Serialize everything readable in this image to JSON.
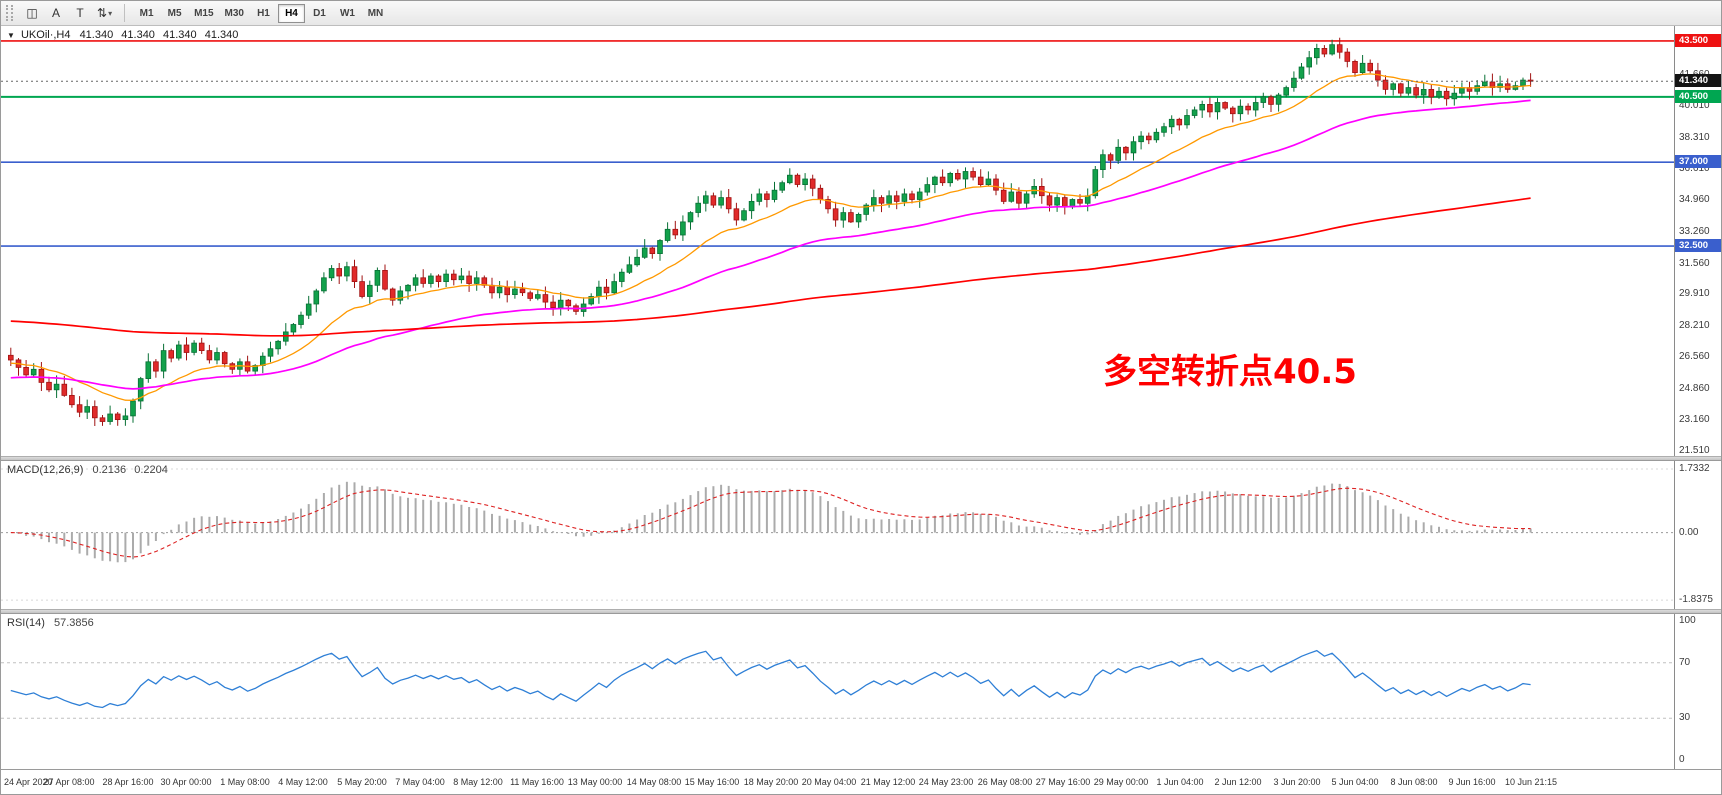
{
  "toolbar": {
    "buttons": [
      {
        "id": "chart-style-button",
        "glyph": "◫"
      },
      {
        "id": "text-tool-button",
        "glyph": "A"
      },
      {
        "id": "type-tool-button",
        "glyph": "T"
      },
      {
        "id": "scale-tool-button",
        "glyph": "⇅"
      }
    ],
    "dropdown_caret": "▾",
    "timeframes": [
      "M1",
      "M5",
      "M15",
      "M30",
      "H1",
      "H4",
      "D1",
      "W1",
      "MN"
    ],
    "active_timeframe": "H4"
  },
  "chart_header": {
    "collapse_icon": "▼",
    "symbol": "UKOil·,H4",
    "open": "41.340",
    "high": "41.340",
    "low": "41.340",
    "close": "41.340"
  },
  "annotation": {
    "text": "多空转折点40.5",
    "color": "#FF0000"
  },
  "main_chart": {
    "price_min": 21.25,
    "price_max": 44.3,
    "ticks": [
      41.66,
      40.01,
      38.31,
      36.61,
      34.96,
      33.26,
      31.56,
      29.91,
      28.21,
      26.56,
      24.86,
      23.16,
      21.51
    ],
    "levels": [
      {
        "price": 43.5,
        "label": "43.500",
        "color": "#EE1111"
      },
      {
        "price": 40.5,
        "label": "40.500",
        "color": "#00A651"
      },
      {
        "price": 37.0,
        "label": "37.000",
        "color": "#3A5FCD"
      },
      {
        "price": 32.5,
        "label": "32.500",
        "color": "#3A5FCD"
      }
    ],
    "current_price": {
      "value": 41.34,
      "label": "41.340",
      "badge_color": "#141414"
    },
    "colors": {
      "up": "#12A14B",
      "up_edge": "#077035",
      "down": "#E02A2A",
      "down_edge": "#A01212",
      "ma_fast": "#FF9900",
      "ma_mid": "#FF00FF",
      "ma_slow": "#FF0000"
    },
    "ma": [
      {
        "period": 16,
        "seed": 26.2
      },
      {
        "period": 50,
        "seed": 25.4
      },
      {
        "period": 220,
        "seed": 28.5
      }
    ]
  },
  "macd": {
    "label": "MACD(12,26,9)",
    "value_main": "0.2136",
    "value_signal": "0.2204",
    "axis": [
      {
        "v": 1.7332,
        "label": "1.7332"
      },
      {
        "v": 0,
        "label": "0.00"
      },
      {
        "v": -1.8375,
        "label": "-1.8375"
      }
    ],
    "range": [
      -2.08,
      1.95
    ],
    "params": {
      "fast": 12,
      "slow": 26,
      "signal": 9
    },
    "colors": {
      "hist": "#ABABAB",
      "signal": "#DD2222"
    }
  },
  "rsi": {
    "label": "RSI(14)",
    "value": "57.3856",
    "period": 14,
    "axis": [
      {
        "v": 100,
        "label": "100"
      },
      {
        "v": 70,
        "label": "70"
      },
      {
        "v": 30,
        "label": "30"
      },
      {
        "v": 0,
        "label": "0"
      }
    ],
    "levels": [
      70,
      30
    ],
    "color": "#2E7FD6"
  },
  "chart_data": {
    "type": "candlestick",
    "symbol": "UKOil",
    "timeframe": "H4",
    "title": "UKOil·,H4",
    "price_range": [
      21.25,
      44.3
    ],
    "closes": [
      26.4,
      26.0,
      25.6,
      25.9,
      25.2,
      24.8,
      25.1,
      24.5,
      24.0,
      23.6,
      23.9,
      23.3,
      23.1,
      23.5,
      23.2,
      23.4,
      24.2,
      25.4,
      26.3,
      25.8,
      26.9,
      26.5,
      27.2,
      26.8,
      27.3,
      26.9,
      26.4,
      26.8,
      26.2,
      25.9,
      26.3,
      25.8,
      26.1,
      26.6,
      27.0,
      27.4,
      27.9,
      28.3,
      28.8,
      29.4,
      30.1,
      30.8,
      31.3,
      30.9,
      31.4,
      30.6,
      29.8,
      30.4,
      31.2,
      30.2,
      29.6,
      30.1,
      30.4,
      30.8,
      30.5,
      30.9,
      30.6,
      31.0,
      30.7,
      30.9,
      30.5,
      30.8,
      30.4,
      30.0,
      30.3,
      29.9,
      30.2,
      30.0,
      29.7,
      29.9,
      29.5,
      29.2,
      29.6,
      29.3,
      29.0,
      29.4,
      29.8,
      30.3,
      30.0,
      30.6,
      31.1,
      31.5,
      31.9,
      32.4,
      32.1,
      32.8,
      33.4,
      33.1,
      33.8,
      34.3,
      34.8,
      35.2,
      34.7,
      35.1,
      34.5,
      33.9,
      34.4,
      34.9,
      35.3,
      35.0,
      35.5,
      35.9,
      36.3,
      35.8,
      36.1,
      35.6,
      35.0,
      34.5,
      33.9,
      34.3,
      33.8,
      34.2,
      34.7,
      35.1,
      34.8,
      35.2,
      34.9,
      35.3,
      35.0,
      35.4,
      35.8,
      36.2,
      35.9,
      36.4,
      36.1,
      36.5,
      36.2,
      35.8,
      36.1,
      35.5,
      34.9,
      35.4,
      34.8,
      35.3,
      35.7,
      35.2,
      34.7,
      35.1,
      34.6,
      35.0,
      34.8,
      35.2,
      36.6,
      37.4,
      37.1,
      37.8,
      37.5,
      38.1,
      38.4,
      38.2,
      38.6,
      38.9,
      39.3,
      39.0,
      39.5,
      39.8,
      40.1,
      39.7,
      40.2,
      39.9,
      39.6,
      40.0,
      39.8,
      40.2,
      40.5,
      40.1,
      40.6,
      41.0,
      41.5,
      42.1,
      42.6,
      43.1,
      42.8,
      43.3,
      42.9,
      42.4,
      41.8,
      42.3,
      41.9,
      41.4,
      40.9,
      41.2,
      40.7,
      41.0,
      40.6,
      40.9,
      40.5,
      40.8,
      40.4,
      40.7,
      41.0,
      40.8,
      41.1,
      41.3,
      41.0,
      41.2,
      40.9,
      41.1,
      41.4,
      41.34
    ],
    "x_labels": [
      "24 Apr 2020",
      "27 Apr 08:00",
      "28 Apr 16:00",
      "30 Apr 00:00",
      "1 May 08:00",
      "4 May 12:00",
      "5 May 20:00",
      "7 May 04:00",
      "8 May 12:00",
      "11 May 16:00",
      "13 May 00:00",
      "14 May 08:00",
      "15 May 16:00",
      "18 May 20:00",
      "20 May 04:00",
      "21 May 12:00",
      "24 May 23:00",
      "26 May 08:00",
      "27 May 16:00",
      "29 May 00:00",
      "1 Jun 04:00",
      "2 Jun 12:00",
      "3 Jun 20:00",
      "5 Jun 04:00",
      "8 Jun 08:00",
      "9 Jun 16:00",
      "10 Jun 21:15"
    ]
  }
}
